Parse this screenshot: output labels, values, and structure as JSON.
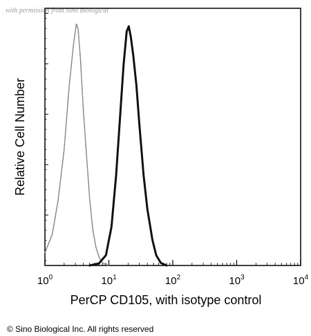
{
  "watermark": "with permission from Sino Biological",
  "copyright": "© Sino Biological Inc. All rights reserved",
  "chart_data": {
    "type": "line",
    "title": "",
    "xlabel": "PerCP CD105, with isotype control",
    "ylabel": "Relative Cell Number",
    "xscale": "log",
    "xlim": [
      1,
      10000
    ],
    "ylim": [
      0,
      100
    ],
    "grid": false,
    "x_ticks": [
      {
        "base": "10",
        "exp": "0",
        "value": 1
      },
      {
        "base": "10",
        "exp": "1",
        "value": 10
      },
      {
        "base": "10",
        "exp": "2",
        "value": 100
      },
      {
        "base": "10",
        "exp": "3",
        "value": 1000
      },
      {
        "base": "10",
        "exp": "4",
        "value": 10000
      }
    ],
    "series": [
      {
        "style": "dotted",
        "color": "#7a7a7a",
        "x": [
          1.0,
          1.3,
          1.6,
          2.0,
          2.4,
          2.8,
          3.1,
          3.3,
          3.6,
          4.0,
          4.5,
          5.0,
          5.6,
          6.3,
          7.1,
          8.0,
          9.0,
          10.0
        ],
        "y": [
          5,
          12,
          25,
          45,
          70,
          86,
          94,
          92,
          80,
          60,
          42,
          26,
          14,
          7,
          3,
          1,
          0.4,
          0
        ]
      },
      {
        "style": "solid",
        "color": "#111111",
        "x": [
          5.0,
          7.0,
          9.0,
          11.0,
          13.0,
          15.0,
          17.0,
          19.0,
          20.5,
          22.0,
          24.0,
          27.0,
          30.0,
          35.0,
          40.0,
          48.0,
          55.0,
          65.0,
          80.0
        ],
        "y": [
          0,
          0.8,
          4,
          15,
          35,
          58,
          78,
          91,
          93,
          89,
          82,
          70,
          55,
          35,
          22,
          10,
          4,
          1,
          0
        ]
      }
    ]
  }
}
